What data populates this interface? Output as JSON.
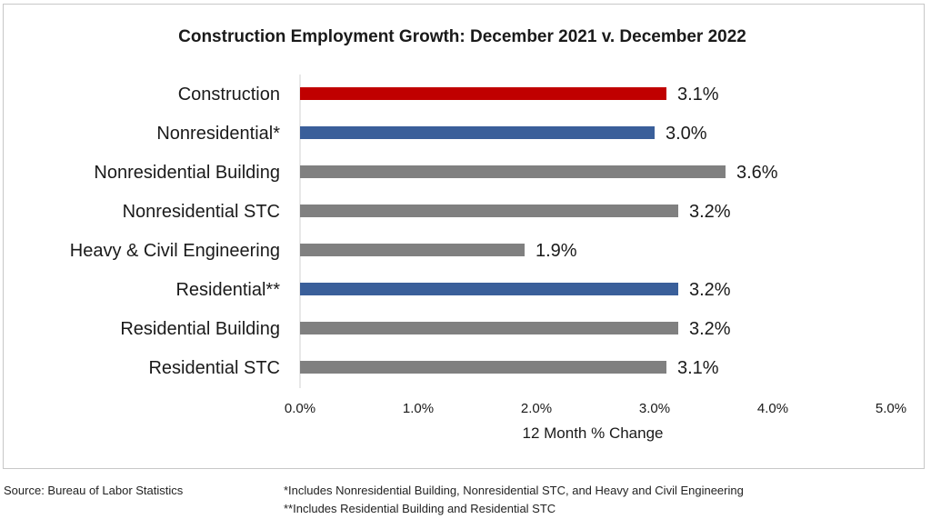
{
  "chart_data": {
    "type": "bar",
    "orientation": "horizontal",
    "title": "Construction Employment Growth: December 2021 v. December 2022",
    "xlabel": "12 Month % Change",
    "ylabel": "",
    "xlim": [
      0,
      5
    ],
    "xticks": [
      "0.0%",
      "1.0%",
      "2.0%",
      "3.0%",
      "4.0%",
      "5.0%"
    ],
    "grid": false,
    "categories": [
      "Construction",
      "Nonresidential*",
      "Nonresidential Building",
      "Nonresidential STC",
      "Heavy & Civil Engineering",
      "Residential**",
      "Residential Building",
      "Residential STC"
    ],
    "values": [
      3.1,
      3.0,
      3.6,
      3.2,
      1.9,
      3.2,
      3.2,
      3.1
    ],
    "value_labels": [
      "3.1%",
      "3.0%",
      "3.6%",
      "3.2%",
      "1.9%",
      "3.2%",
      "3.2%",
      "3.1%"
    ],
    "bar_colors": [
      "#c00000",
      "#3a5f9a",
      "#808080",
      "#808080",
      "#808080",
      "#3a5f9a",
      "#808080",
      "#808080"
    ]
  },
  "footer": {
    "source": "Source:  Bureau of Labor Statistics",
    "note1": "*Includes Nonresidential Building, Nonresidential STC, and Heavy and Civil Engineering",
    "note2": "**Includes Residential Building and Residential STC"
  }
}
